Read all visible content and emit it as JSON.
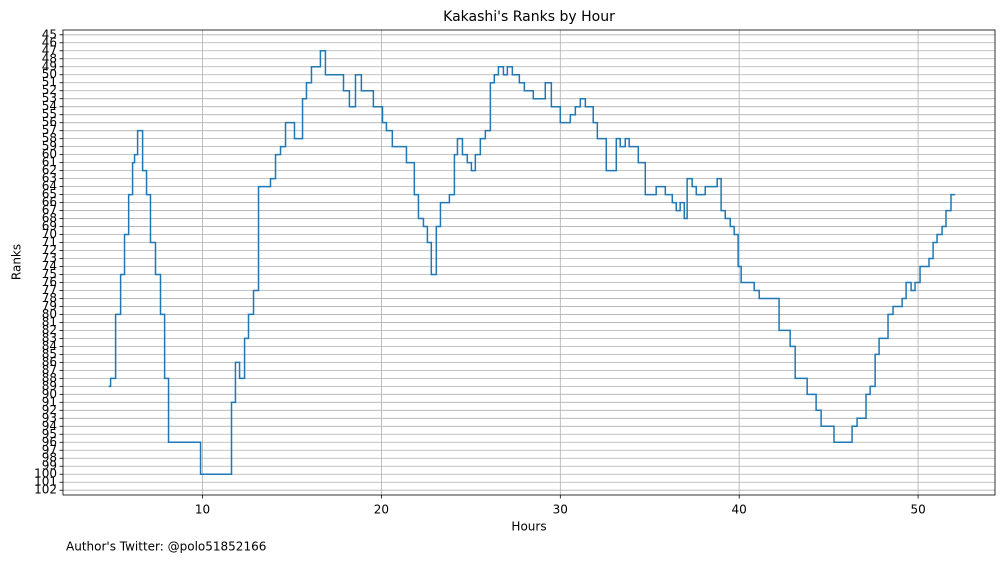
{
  "chart_data": {
    "type": "step",
    "drawstyle": "steps-post",
    "title": "Kakashi's Ranks by Hour",
    "xlabel": "Hours",
    "ylabel": "Ranks",
    "footnote": "Author's Twitter: @polo51852166",
    "color": "#1f77b4",
    "grid": true,
    "y_inverted": true,
    "x": [
      4.75,
      4.86,
      5.14,
      5.42,
      5.64,
      5.87,
      6.09,
      6.2,
      6.37,
      6.65,
      6.87,
      7.09,
      7.37,
      7.65,
      7.88,
      8.1,
      9.89,
      11.62,
      11.84,
      12.07,
      12.35,
      12.57,
      12.85,
      13.13,
      13.8,
      14.08,
      14.36,
      14.64,
      15.14,
      15.59,
      15.81,
      16.09,
      16.59,
      16.87,
      17.88,
      18.21,
      18.55,
      18.88,
      19.55,
      20.06,
      20.28,
      20.61,
      21.4,
      21.84,
      22.07,
      22.35,
      22.57,
      22.79,
      23.07,
      23.3,
      23.8,
      24.08,
      24.25,
      24.53,
      24.8,
      25.03,
      25.25,
      25.53,
      25.81,
      26.09,
      26.31,
      26.54,
      26.82,
      27.04,
      27.32,
      27.71,
      27.99,
      28.49,
      29.16,
      29.5,
      30.0,
      30.56,
      30.84,
      31.12,
      31.4,
      31.84,
      32.07,
      32.57,
      33.13,
      33.35,
      33.63,
      33.85,
      34.36,
      34.75,
      35.36,
      35.87,
      36.26,
      36.48,
      36.7,
      36.93,
      37.09,
      37.37,
      37.6,
      38.1,
      38.77,
      38.99,
      39.22,
      39.5,
      39.72,
      39.94,
      40.11,
      40.84,
      41.12,
      42.23,
      42.85,
      43.13,
      43.8,
      44.3,
      44.58,
      45.3,
      46.31,
      46.59,
      47.09,
      47.32,
      47.6,
      47.82,
      48.32,
      48.6,
      49.11,
      49.33,
      49.61,
      49.83,
      50.11,
      50.61,
      50.84,
      51.06,
      51.34,
      51.56,
      51.84,
      52.07
    ],
    "values": [
      89,
      88,
      80,
      75,
      70,
      65,
      61,
      60,
      57,
      62,
      65,
      71,
      75,
      80,
      88,
      96,
      100,
      91,
      86,
      88,
      83,
      80,
      77,
      64,
      63,
      60,
      59,
      56,
      58,
      53,
      51,
      49,
      47,
      50,
      52,
      54,
      50,
      52,
      54,
      56,
      57,
      59,
      61,
      65,
      68,
      69,
      71,
      75,
      69,
      66,
      65,
      60,
      58,
      60,
      61,
      62,
      60,
      58,
      57,
      51,
      50,
      49,
      50,
      49,
      50,
      51,
      52,
      53,
      51,
      54,
      56,
      55,
      54,
      53,
      54,
      56,
      58,
      62,
      58,
      59,
      58,
      59,
      61,
      65,
      64,
      65,
      66,
      67,
      66,
      68,
      63,
      64,
      65,
      64,
      63,
      67,
      68,
      69,
      70,
      74,
      76,
      77,
      78,
      82,
      84,
      88,
      90,
      92,
      94,
      96,
      94,
      93,
      90,
      89,
      85,
      83,
      80,
      79,
      78,
      76,
      77,
      76,
      74,
      73,
      71,
      70,
      69,
      67,
      65,
      65
    ],
    "xlim": [
      2.2,
      54.3
    ],
    "xticks": [
      10,
      20,
      30,
      40,
      50
    ],
    "ylim": [
      102.6,
      44.4
    ],
    "yticks": [
      45,
      46,
      47,
      48,
      49,
      50,
      51,
      52,
      53,
      54,
      55,
      56,
      57,
      58,
      59,
      60,
      61,
      62,
      63,
      64,
      65,
      66,
      67,
      68,
      69,
      70,
      71,
      72,
      73,
      74,
      75,
      76,
      77,
      78,
      79,
      80,
      81,
      82,
      83,
      84,
      85,
      86,
      87,
      88,
      89,
      90,
      91,
      92,
      93,
      94,
      95,
      96,
      97,
      98,
      99,
      100,
      101,
      102
    ]
  }
}
